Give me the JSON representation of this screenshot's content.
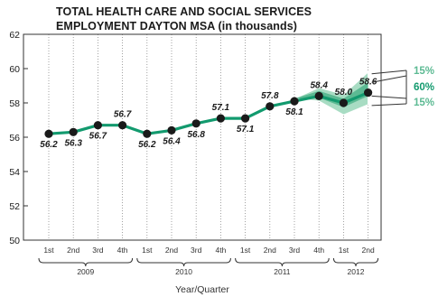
{
  "chart_data": {
    "type": "line",
    "title": "TOTAL HEALTH CARE AND SOCIAL SERVICES",
    "subtitle": "EMPLOYMENT DAYTON MSA (in thousands)",
    "xlabel": "Year/Quarter",
    "ylabel": "",
    "ylim": [
      50,
      62
    ],
    "yticks": [
      50,
      52,
      54,
      56,
      58,
      60,
      62
    ],
    "grid": "vertical dotted",
    "quarters": [
      "1st",
      "2nd",
      "3rd",
      "4th",
      "1st",
      "2nd",
      "3rd",
      "4th",
      "1st",
      "2nd",
      "3rd",
      "4th",
      "1st",
      "2nd"
    ],
    "years": [
      {
        "label": "2009",
        "start": 0,
        "end": 3
      },
      {
        "label": "2010",
        "start": 4,
        "end": 7
      },
      {
        "label": "2011",
        "start": 8,
        "end": 11
      },
      {
        "label": "2012",
        "start": 12,
        "end": 13
      }
    ],
    "series": [
      {
        "values": [
          56.2,
          56.3,
          56.7,
          56.7,
          56.2,
          56.4,
          56.8,
          57.1,
          57.1,
          57.8,
          58.1,
          58.4,
          58.0,
          58.6
        ],
        "data_labels": [
          "56.2",
          "56.3",
          "56.7",
          "56.7",
          "56.2",
          "56.4",
          "56.8",
          "57.1",
          "57.1",
          "57.8",
          "58.1",
          "58.4",
          "58.0",
          "58.6"
        ],
        "color": "#129a6e"
      }
    ],
    "forecast_band": {
      "start_index": 10,
      "upper_outer": [
        58.25,
        58.9,
        58.5,
        59.8
      ],
      "upper_inner": [
        58.25,
        58.7,
        58.25,
        59.2
      ],
      "lower_inner": [
        58.25,
        58.3,
        57.75,
        58.4
      ],
      "lower_outer": [
        58.25,
        58.1,
        57.3,
        57.9
      ],
      "outer_color": "#a8dcc3",
      "inner_color": "#5cba93"
    },
    "band_labels": {
      "upper": "15%",
      "middle": "60%",
      "lower": "15%",
      "upper_color": "#5cba93",
      "middle_color": "#129a6e",
      "lower_color": "#5cba93"
    }
  }
}
